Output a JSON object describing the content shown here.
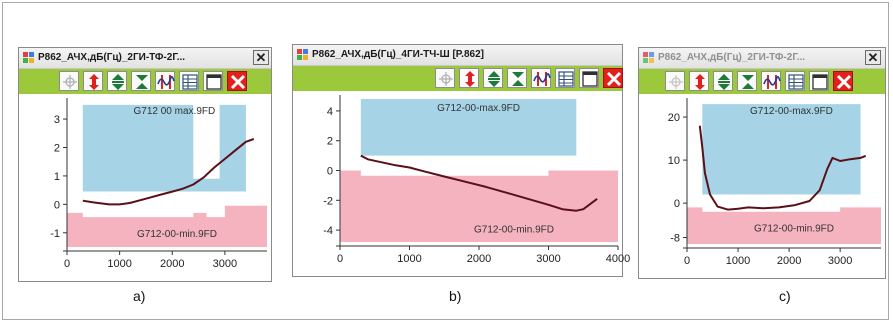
{
  "colors": {
    "toolbar_green": "#9cc83c",
    "max_region": "#a6d4e6",
    "min_region": "#f5b3c0",
    "curve": "#5a1018",
    "exit_red": "#e3201b"
  },
  "toolbar_icons": [
    "crosshair-icon",
    "vertical-arrows-icon",
    "expand-icon",
    "collapse-icon",
    "wave-arrows-icon",
    "table-icon",
    "blank-window-icon",
    "close-x-icon"
  ],
  "windows": [
    {
      "caption": "a)",
      "title": "P862_АЧХ,дБ(Гц)_2ГИ-ТФ-2Г...",
      "title_active": true,
      "close_label": "✕",
      "chart_data": {
        "type": "line",
        "x_ticks": [
          0,
          1000,
          2000,
          3000
        ],
        "y_ticks": [
          -1,
          0,
          1,
          2,
          3
        ],
        "xlim": [
          0,
          3800
        ],
        "ylim": [
          -1.5,
          3.6
        ],
        "max_label": "G712 00 max.9FD",
        "min_label": "G712-00-min.9FD",
        "max_bound": [
          [
            300,
            3.5
          ],
          [
            2400,
            3.5
          ],
          [
            2400,
            0.9
          ],
          [
            2900,
            0.9
          ],
          [
            2900,
            3.5
          ],
          [
            3400,
            3.5
          ]
        ],
        "max_bound_floor": 0.45,
        "min_bound": [
          [
            0,
            -0.3
          ],
          [
            300,
            -0.3
          ],
          [
            300,
            -0.45
          ],
          [
            2400,
            -0.45
          ],
          [
            2400,
            -0.3
          ],
          [
            2650,
            -0.3
          ],
          [
            2650,
            -0.45
          ],
          [
            3000,
            -0.45
          ],
          [
            3000,
            -0.05
          ],
          [
            3800,
            -0.05
          ]
        ],
        "series": [
          {
            "values": [
              [
                300,
                0.13
              ],
              [
                500,
                0.07
              ],
              [
                800,
                0.0
              ],
              [
                1000,
                0.0
              ],
              [
                1200,
                0.05
              ],
              [
                1500,
                0.2
              ],
              [
                1800,
                0.35
              ],
              [
                2000,
                0.45
              ],
              [
                2200,
                0.55
              ],
              [
                2400,
                0.7
              ],
              [
                2600,
                0.95
              ],
              [
                2800,
                1.3
              ],
              [
                3000,
                1.6
              ],
              [
                3200,
                1.9
              ],
              [
                3400,
                2.2
              ],
              [
                3550,
                2.3
              ]
            ]
          }
        ]
      }
    },
    {
      "caption": "b)",
      "title": "P862_АЧХ,дБ(Гц)_4ГИ-ТЧ-Ш [P.862]",
      "title_active": true,
      "close_label": "✕",
      "chart_data": {
        "type": "line",
        "x_ticks": [
          0,
          1000,
          2000,
          3000,
          4000
        ],
        "y_ticks": [
          -4,
          -2,
          0,
          2,
          4
        ],
        "xlim": [
          0,
          4000
        ],
        "ylim": [
          -4.8,
          4.8
        ],
        "max_label": "G712-00-max.9FD",
        "min_label": "G712-00-min.9FD",
        "max_bound": [
          [
            300,
            4.8
          ],
          [
            3400,
            4.8
          ]
        ],
        "max_bound_floor": 1.0,
        "min_bound": [
          [
            0,
            0.0
          ],
          [
            300,
            0.0
          ],
          [
            300,
            -0.35
          ],
          [
            3000,
            -0.35
          ],
          [
            3000,
            0.0
          ],
          [
            4000,
            0.0
          ]
        ],
        "series": [
          {
            "values": [
              [
                300,
                1.0
              ],
              [
                400,
                0.75
              ],
              [
                600,
                0.55
              ],
              [
                800,
                0.35
              ],
              [
                1000,
                0.2
              ],
              [
                1200,
                -0.05
              ],
              [
                1500,
                -0.4
              ],
              [
                1800,
                -0.75
              ],
              [
                2100,
                -1.1
              ],
              [
                2400,
                -1.5
              ],
              [
                2700,
                -1.9
              ],
              [
                3000,
                -2.3
              ],
              [
                3200,
                -2.6
              ],
              [
                3400,
                -2.7
              ],
              [
                3500,
                -2.6
              ],
              [
                3700,
                -1.9
              ]
            ]
          }
        ]
      }
    },
    {
      "caption": "c)",
      "title": "P862_АЧХ,дБ(Гц)_2ГИ-ТФ-2Г...",
      "title_active": false,
      "close_label": "✕",
      "chart_data": {
        "type": "line",
        "x_ticks": [
          0,
          1000,
          2000,
          3000
        ],
        "y_ticks": [
          -8,
          0,
          10,
          20
        ],
        "xlim": [
          0,
          3800
        ],
        "ylim": [
          -9.5,
          23.5
        ],
        "max_label": "G712-00-max.9FD",
        "min_label": "G712-00-min.9FD",
        "max_bound": [
          [
            300,
            23
          ],
          [
            3400,
            23
          ]
        ],
        "max_bound_floor": 2.0,
        "min_bound": [
          [
            0,
            -1.0
          ],
          [
            300,
            -1.0
          ],
          [
            300,
            -2.0
          ],
          [
            3000,
            -2.0
          ],
          [
            3000,
            -1.0
          ],
          [
            3800,
            -1.0
          ]
        ],
        "series": [
          {
            "values": [
              [
                250,
                18
              ],
              [
                300,
                13
              ],
              [
                350,
                7
              ],
              [
                450,
                2
              ],
              [
                600,
                -0.8
              ],
              [
                800,
                -1.5
              ],
              [
                1000,
                -1.3
              ],
              [
                1200,
                -1.0
              ],
              [
                1500,
                -1.2
              ],
              [
                1800,
                -1.0
              ],
              [
                2100,
                -0.5
              ],
              [
                2400,
                0.5
              ],
              [
                2600,
                3.0
              ],
              [
                2750,
                8.0
              ],
              [
                2850,
                10.5
              ],
              [
                3000,
                9.8
              ],
              [
                3200,
                10.2
              ],
              [
                3400,
                10.5
              ],
              [
                3500,
                11.0
              ]
            ]
          }
        ]
      }
    }
  ]
}
